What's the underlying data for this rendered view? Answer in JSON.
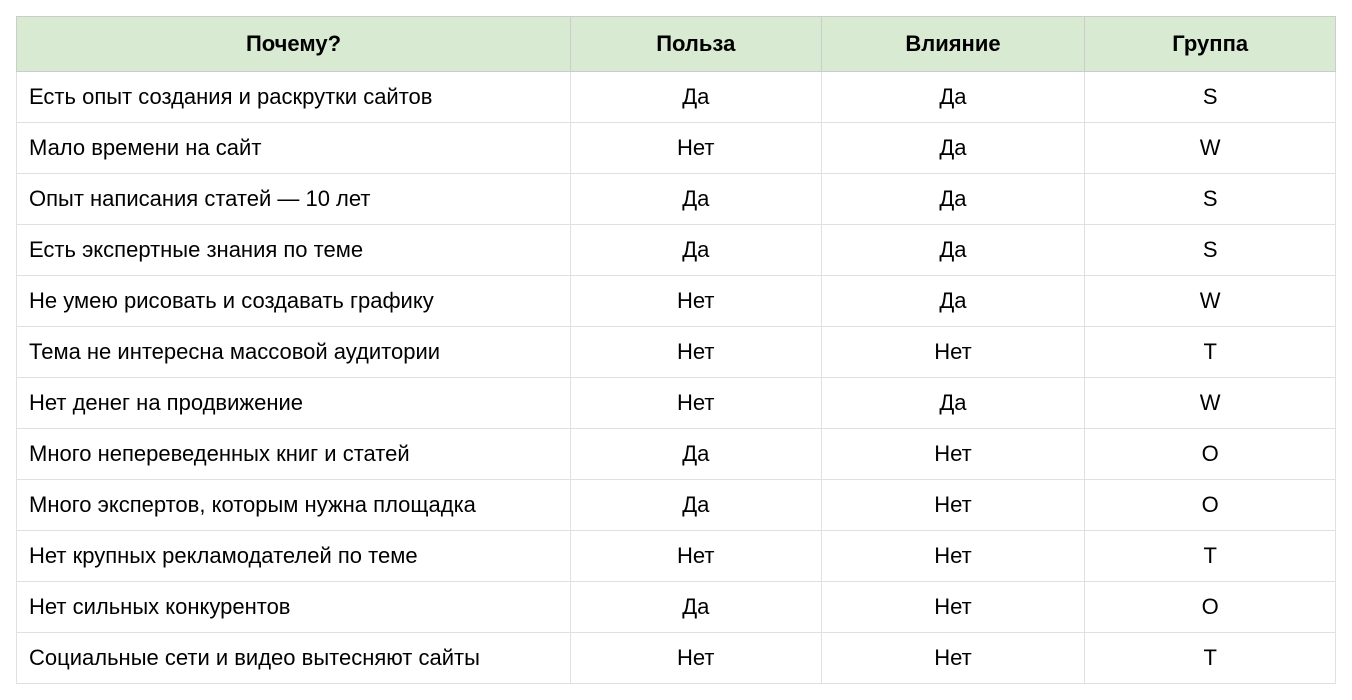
{
  "table": {
    "header_bg": "#d9ead3",
    "border_color": "#cccccc",
    "row_border_color": "#e0e0e0",
    "font_size": 22,
    "header_font_weight": "bold",
    "columns": [
      {
        "key": "why",
        "label": "Почему?",
        "align": "left",
        "width_pct": 42
      },
      {
        "key": "benefit",
        "label": "Польза",
        "align": "center",
        "width_pct": 19
      },
      {
        "key": "influence",
        "label": "Влияние",
        "align": "center",
        "width_pct": 20
      },
      {
        "key": "group",
        "label": "Группа",
        "align": "center",
        "width_pct": 19
      }
    ],
    "rows": [
      {
        "why": "Есть опыт создания и раскрутки сайтов",
        "benefit": "Да",
        "influence": "Да",
        "group": "S"
      },
      {
        "why": "Мало времени на сайт",
        "benefit": "Нет",
        "influence": "Да",
        "group": "W"
      },
      {
        "why": "Опыт написания статей — 10 лет",
        "benefit": "Да",
        "influence": "Да",
        "group": "S"
      },
      {
        "why": "Есть экспертные знания по теме",
        "benefit": "Да",
        "influence": "Да",
        "group": "S"
      },
      {
        "why": "Не умею рисовать и создавать графику",
        "benefit": "Нет",
        "influence": "Да",
        "group": "W"
      },
      {
        "why": "Тема не интересна массовой аудитории",
        "benefit": "Нет",
        "influence": "Нет",
        "group": "T"
      },
      {
        "why": "Нет денег на продвижение",
        "benefit": "Нет",
        "influence": "Да",
        "group": "W"
      },
      {
        "why": "Много непереведенных книг и статей",
        "benefit": "Да",
        "influence": "Нет",
        "group": "O"
      },
      {
        "why": "Много экспертов, которым нужна площадка",
        "benefit": "Да",
        "influence": "Нет",
        "group": "O"
      },
      {
        "why": "Нет крупных рекламодателей по теме",
        "benefit": "Нет",
        "influence": "Нет",
        "group": "T"
      },
      {
        "why": "Нет сильных конкурентов",
        "benefit": "Да",
        "influence": "Нет",
        "group": "O"
      },
      {
        "why": "Социальные сети и видео вытесняют сайты",
        "benefit": "Нет",
        "influence": "Нет",
        "group": "T"
      }
    ]
  }
}
